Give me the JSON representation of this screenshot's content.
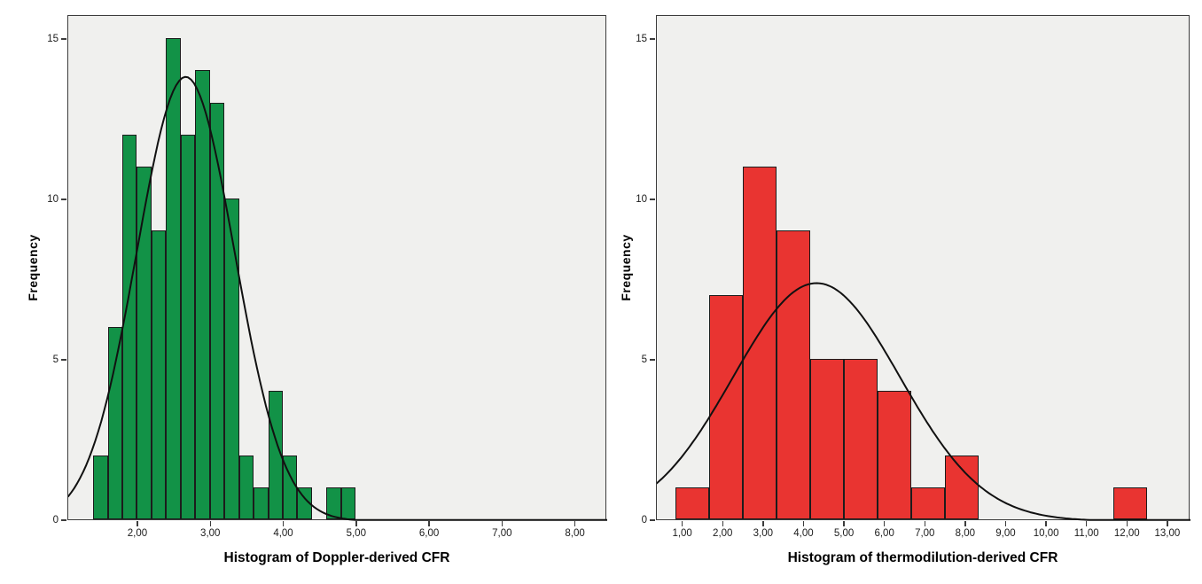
{
  "page": {
    "background": "#ffffff",
    "description": "Two side-by-side SPSS-style histograms with normal curve overlays"
  },
  "chart_data": [
    {
      "type": "bar",
      "subtype": "histogram",
      "title": "Histogram of Doppler-derived CFR",
      "xlabel": "",
      "ylabel": "Frequency",
      "grid": false,
      "legend_position": "none",
      "xlim": [
        1.04,
        8.43
      ],
      "ylim": [
        0,
        15.75
      ],
      "plot_bg": "#f0f0ee",
      "frame_color": "#3c3c3c",
      "bar_color": "#129247",
      "bar_border_color": "#1c1c1c",
      "curve_color": "#111111",
      "x_ticks": [
        {
          "v": 2,
          "label": "2,00"
        },
        {
          "v": 3,
          "label": "3,00"
        },
        {
          "v": 4,
          "label": "4,00"
        },
        {
          "v": 5,
          "label": "5,00"
        },
        {
          "v": 6,
          "label": "6,00"
        },
        {
          "v": 7,
          "label": "7,00"
        },
        {
          "v": 8,
          "label": "8,00"
        }
      ],
      "y_ticks": [
        {
          "v": 0,
          "label": "0"
        },
        {
          "v": 5,
          "label": "5"
        },
        {
          "v": 10,
          "label": "10"
        },
        {
          "v": 15,
          "label": "15"
        }
      ],
      "bins": {
        "start": 1.4,
        "width": 0.2,
        "counts": [
          2,
          6,
          12,
          11,
          9,
          15,
          12,
          14,
          13,
          10,
          2,
          1,
          4,
          2,
          1,
          0,
          1,
          1
        ]
      },
      "n_total": 116,
      "normal_curve": {
        "mean": 2.65,
        "sd": 0.67,
        "peak": 13.85
      }
    },
    {
      "type": "bar",
      "subtype": "histogram",
      "title": "Histogram of thermodilution-derived CFR",
      "xlabel": "",
      "ylabel": "Frequency",
      "grid": false,
      "legend_position": "none",
      "xlim": [
        0.35,
        13.55
      ],
      "ylim": [
        0,
        15.75
      ],
      "plot_bg": "#f0f0ee",
      "frame_color": "#3c3c3c",
      "bar_color": "#e93431",
      "bar_border_color": "#1c1c1c",
      "curve_color": "#111111",
      "x_ticks": [
        {
          "v": 1,
          "label": "1,00"
        },
        {
          "v": 2,
          "label": "2,00"
        },
        {
          "v": 3,
          "label": "3,00"
        },
        {
          "v": 4,
          "label": "4,00"
        },
        {
          "v": 5,
          "label": "5,00"
        },
        {
          "v": 6,
          "label": "6,00"
        },
        {
          "v": 7,
          "label": "7,00"
        },
        {
          "v": 8,
          "label": "8,00"
        },
        {
          "v": 9,
          "label": "9,00"
        },
        {
          "v": 10,
          "label": "10,00"
        },
        {
          "v": 11,
          "label": "11,00"
        },
        {
          "v": 12,
          "label": "12,00"
        },
        {
          "v": 13,
          "label": "13,00"
        }
      ],
      "y_ticks": [
        {
          "v": 0,
          "label": "0"
        },
        {
          "v": 5,
          "label": "5"
        },
        {
          "v": 10,
          "label": "10"
        },
        {
          "v": 15,
          "label": "15"
        }
      ],
      "bins": {
        "start": 0.8333,
        "width": 0.8333,
        "counts": [
          1,
          7,
          11,
          9,
          5,
          5,
          4,
          1,
          2,
          0,
          0,
          0,
          0,
          1
        ]
      },
      "n_total": 46,
      "normal_curve": {
        "mean": 4.3,
        "sd": 2.06,
        "peak": 7.42
      }
    }
  ]
}
